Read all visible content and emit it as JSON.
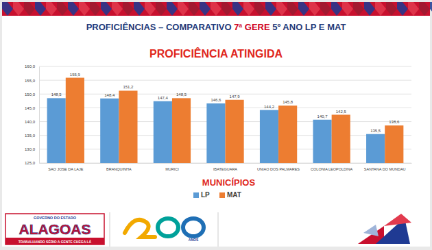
{
  "slide": {
    "heading": [
      "PROFICIÊNCIAS – COMPARATIVO ",
      "7ª GERE",
      " 5º ANO LP E MAT"
    ],
    "logo": {
      "top": "GOVERNO DO ESTADO",
      "name": "ALAGOAS",
      "motto": "TRABALHANDO SÉRIO A GENTE CHEGA LÁ"
    },
    "anniversary": "ANOS"
  },
  "chart_data": {
    "type": "bar",
    "title": "PROFICIÊNCIA ATINGIDA",
    "x_label": "MUNICÍPIOS",
    "categories": [
      "SAO JOSE DA LAJE",
      "BRANQUINHA",
      "MURICI",
      "IBATEGUARA",
      "UNIAO DOS PALMARES",
      "COLONIA LEOPOLDINA",
      "SANTANA DO MUNDAU"
    ],
    "series": [
      {
        "name": "LP",
        "color": "#5b9bd5",
        "values": [
          148.5,
          148.4,
          147.4,
          146.6,
          144.2,
          140.7,
          135.5
        ],
        "value_labels": [
          "148,5",
          "148,4",
          "147,4",
          "146,6",
          "144,2",
          "140,7",
          "135,5"
        ]
      },
      {
        "name": "MAT",
        "color": "#ed7d31",
        "values": [
          155.9,
          151.2,
          148.5,
          147.9,
          145.8,
          142.5,
          138.6
        ],
        "value_labels": [
          "155,9",
          "151,2",
          "148,5",
          "147,9",
          "145,8",
          "142,5",
          "138,6"
        ]
      }
    ],
    "ylim": [
      125,
      160
    ],
    "yticks": [
      {
        "value": 125,
        "label": "125,0"
      },
      {
        "value": 130,
        "label": "130,0"
      },
      {
        "value": 135,
        "label": "135,0"
      },
      {
        "value": 140,
        "label": "140,0"
      },
      {
        "value": 145,
        "label": "145,0"
      },
      {
        "value": 150,
        "label": "150,0"
      },
      {
        "value": 155,
        "label": "155,0"
      },
      {
        "value": 160,
        "label": "160,0"
      }
    ],
    "grid": true,
    "legend": "bottom",
    "data_labels": true
  }
}
